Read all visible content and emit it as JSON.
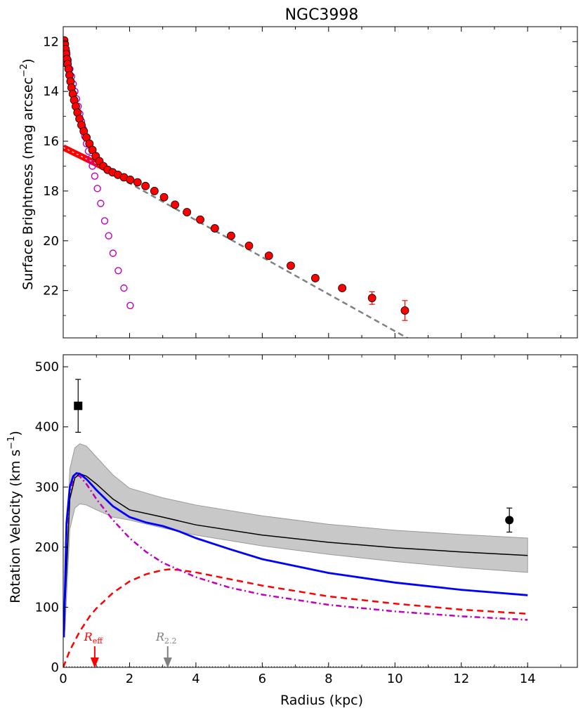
{
  "title": "NGC3998",
  "colors": {
    "data_red": "#ff0000",
    "bulge_magenta": "#bf00bf",
    "total_blue": "#0000ff",
    "fit_gray": "#808080",
    "band_gray": "#c8c8c8"
  },
  "chart_data": [
    {
      "type": "scatter",
      "panel": "top",
      "title": "NGC3998",
      "xlabel": "",
      "ylabel": "Surface Brightness (mag arcsec⁻²)",
      "ylabel_base": "Surface Brightness (mag arcsec",
      "ylabel_exp": "−2",
      "ylabel_close": ")",
      "xlim": [
        0,
        15.5
      ],
      "ylim": [
        23.9,
        11.4
      ],
      "y_inverted": true,
      "grid": false,
      "yticks": [
        12,
        14,
        16,
        18,
        20,
        22
      ],
      "ytick_labels": [
        "12",
        "14",
        "16",
        "18",
        "20",
        "22"
      ],
      "series": [
        {
          "marker": "filled-circle",
          "color": "#ff0000",
          "x": [
            0.03,
            0.05,
            0.07,
            0.09,
            0.11,
            0.13,
            0.16,
            0.19,
            0.22,
            0.25,
            0.29,
            0.33,
            0.38,
            0.43,
            0.49,
            0.55,
            0.62,
            0.7,
            0.79,
            0.88,
            0.98,
            1.09,
            1.21,
            1.34,
            1.49,
            1.65,
            1.83,
            2.02,
            2.24,
            2.48,
            2.75,
            3.04,
            3.37,
            3.73,
            4.13,
            4.57,
            5.06,
            5.6,
            6.2,
            6.86,
            7.6,
            8.41,
            9.31,
            10.3
          ],
          "y": [
            11.95,
            12.1,
            12.3,
            12.5,
            12.7,
            12.9,
            13.1,
            13.35,
            13.6,
            13.85,
            14.1,
            14.35,
            14.6,
            14.85,
            15.1,
            15.35,
            15.6,
            15.85,
            16.1,
            16.35,
            16.6,
            16.8,
            17.0,
            17.15,
            17.25,
            17.35,
            17.45,
            17.55,
            17.65,
            17.8,
            18.0,
            18.25,
            18.55,
            18.85,
            19.15,
            19.5,
            19.8,
            20.2,
            20.6,
            21.0,
            21.5,
            21.9,
            22.3,
            22.8
          ],
          "y_err_last": [
            0.25,
            0.4
          ]
        },
        {
          "marker": "open-circle",
          "color": "#bf00bf",
          "x": [
            0.05,
            0.1,
            0.15,
            0.2,
            0.25,
            0.3,
            0.35,
            0.4,
            0.45,
            0.5,
            0.55,
            0.6,
            0.65,
            0.7,
            0.76,
            0.82,
            0.88,
            0.95,
            1.03,
            1.13,
            1.25,
            1.37,
            1.5,
            1.66,
            1.83,
            2.02
          ],
          "y": [
            12.05,
            12.4,
            12.75,
            13.1,
            13.4,
            13.7,
            14.0,
            14.3,
            14.6,
            14.9,
            15.2,
            15.5,
            15.8,
            16.1,
            16.4,
            16.7,
            17.0,
            17.4,
            17.9,
            18.5,
            19.2,
            19.8,
            20.5,
            21.2,
            21.9,
            22.6
          ]
        },
        {
          "line": "dashed",
          "color": "#808080",
          "x": [
            0,
            10.5
          ],
          "y": [
            16.2,
            24.0
          ]
        },
        {
          "line": "thick-band",
          "color": "#ff0000",
          "x": [
            0,
            1.3
          ],
          "y": [
            16.25,
            17.1
          ]
        }
      ]
    },
    {
      "type": "line",
      "panel": "bottom",
      "xlabel": "Radius (kpc)",
      "ylabel": "Rotation Velocity (km s⁻¹)",
      "ylabel_base": "Rotation Velocity (km s",
      "ylabel_exp": "−1",
      "ylabel_close": ")",
      "xlim": [
        0,
        15.5
      ],
      "ylim": [
        0,
        520
      ],
      "grid": false,
      "xticks": [
        0,
        2,
        4,
        6,
        8,
        10,
        12,
        14
      ],
      "xtick_labels": [
        "0",
        "2",
        "4",
        "6",
        "8",
        "10",
        "12",
        "14"
      ],
      "yticks": [
        0,
        100,
        200,
        300,
        400,
        500
      ],
      "ytick_labels": [
        "0",
        "100",
        "200",
        "300",
        "400",
        "500"
      ],
      "series": [
        {
          "name": "",
          "kind": "band",
          "color": "#c8c8c8",
          "x": [
            0.05,
            0.2,
            0.35,
            0.5,
            0.7,
            1.0,
            1.5,
            2.0,
            3.0,
            4.0,
            6.0,
            8.0,
            10.0,
            12.0,
            14.0
          ],
          "y_upper": [
            140,
            330,
            365,
            372,
            368,
            350,
            320,
            298,
            282,
            270,
            252,
            238,
            228,
            221,
            215
          ],
          "y_lower": [
            60,
            230,
            265,
            272,
            270,
            262,
            250,
            245,
            232,
            220,
            202,
            188,
            176,
            166,
            158
          ]
        },
        {
          "name": "",
          "kind": "line-black",
          "color": "#000000",
          "x": [
            0.05,
            0.2,
            0.35,
            0.5,
            0.7,
            1.0,
            1.5,
            2.0,
            3.0,
            4.0,
            6.0,
            8.0,
            10.0,
            12.0,
            14.0
          ],
          "y": [
            100,
            280,
            315,
            322,
            318,
            305,
            280,
            262,
            250,
            237,
            220,
            208,
            199,
            192,
            186
          ]
        },
        {
          "name": "",
          "kind": "line-blue",
          "color": "#0000ff",
          "x": [
            0.02,
            0.1,
            0.2,
            0.3,
            0.4,
            0.5,
            0.7,
            1.0,
            1.5,
            2.0,
            2.5,
            3.0,
            3.5,
            4.0,
            5.0,
            6.0,
            8.0,
            10.0,
            12.0,
            14.0
          ],
          "y": [
            50,
            240,
            300,
            318,
            323,
            322,
            313,
            295,
            268,
            250,
            241,
            235,
            226,
            215,
            197,
            180,
            157,
            141,
            129,
            120
          ]
        },
        {
          "name": "",
          "kind": "dashdot-magenta",
          "color": "#bf00bf",
          "x": [
            0.02,
            0.1,
            0.2,
            0.3,
            0.4,
            0.5,
            0.7,
            1.0,
            1.5,
            2.0,
            2.5,
            3.0,
            4.0,
            5.0,
            6.0,
            8.0,
            10.0,
            12.0,
            14.0
          ],
          "y": [
            50,
            230,
            292,
            313,
            320,
            318,
            305,
            280,
            245,
            215,
            192,
            174,
            150,
            133,
            121,
            104,
            93,
            85,
            79
          ]
        },
        {
          "name": "",
          "kind": "dashed-red",
          "color": "#ff0000",
          "x": [
            0.0,
            0.2,
            0.5,
            0.8,
            1.0,
            1.5,
            2.0,
            2.5,
            3.0,
            3.2,
            3.5,
            4.0,
            5.0,
            6.0,
            8.0,
            10.0,
            12.0,
            14.0
          ],
          "y": [
            0,
            28,
            60,
            85,
            98,
            124,
            143,
            155,
            162,
            163,
            162,
            158,
            147,
            136,
            118,
            106,
            96,
            89
          ]
        }
      ],
      "points": [
        {
          "marker": "square",
          "x": 0.45,
          "y": 435,
          "err": [
            44,
            44
          ]
        },
        {
          "marker": "circle",
          "x": 13.45,
          "y": 245,
          "err": [
            20,
            20
          ]
        }
      ],
      "annotations": [
        {
          "label": "R_eff",
          "x": 0.95,
          "color": "#ff0000"
        },
        {
          "label": "R_2.2",
          "x": 3.15,
          "color": "#808080"
        }
      ]
    }
  ]
}
